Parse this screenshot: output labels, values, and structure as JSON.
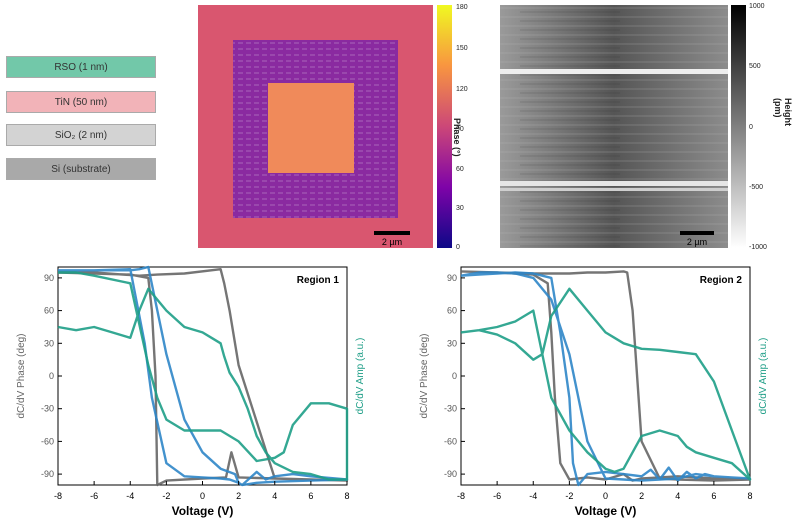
{
  "stack": {
    "layers": [
      {
        "label": "RSO (1 nm)",
        "color": "#72c8a9"
      },
      {
        "label": "TiN (50 nm)",
        "color": "#f2b3b8"
      },
      {
        "label": "SiO₂ (2 nm)",
        "color": "#d3d3d3"
      },
      {
        "label": "Si (substrate)",
        "color": "#a9a9a9"
      }
    ]
  },
  "phase_map": {
    "scale_bar": "2 µm",
    "colorbar_label": "Phase (°)",
    "colorbar_ticks": [
      "0",
      "30",
      "60",
      "90",
      "120",
      "150",
      "180"
    ]
  },
  "height_map": {
    "scale_bar": "2 µm",
    "colorbar_label": "Height (pm)",
    "colorbar_ticks": [
      "-1000",
      "-500",
      "0",
      "500",
      "1000"
    ]
  },
  "chart_data": [
    {
      "type": "line",
      "title": "Region 1",
      "xlabel": "Voltage (V)",
      "ylabel_left": "dC/dV Phase (deg)",
      "ylabel_right": "dC/dV Amp (a.u.)",
      "xlim": [
        -8,
        8
      ],
      "ylim": [
        -100,
        100
      ],
      "x_ticks": [
        -8,
        -6,
        -4,
        -2,
        0,
        2,
        4,
        6,
        8
      ],
      "y_ticks": [
        -90,
        -60,
        -30,
        0,
        30,
        60,
        90
      ],
      "series": [
        {
          "color": "#666666",
          "axis": "left",
          "x": [
            -8,
            -6,
            -4,
            -3,
            -2.8,
            -2.6,
            -2.5,
            -2,
            0,
            1.3,
            1.6,
            2,
            4,
            6,
            8,
            8,
            6,
            4,
            2,
            1.5,
            1.2,
            1,
            -1,
            -2.5,
            -3.5,
            -6,
            -8
          ],
          "y": [
            95,
            94,
            93,
            90,
            60,
            0,
            -100,
            -96,
            -94,
            -93,
            -70,
            -93,
            -94,
            -95,
            -96,
            -96,
            -95,
            -94,
            10,
            60,
            85,
            98,
            94,
            93,
            92,
            95,
            95
          ]
        },
        {
          "color": "#2f86c8",
          "axis": "left",
          "x": [
            -8,
            -6,
            -4,
            -3.5,
            -3,
            -2,
            -1.5,
            -1,
            0,
            1,
            1.8,
            2,
            2.2,
            3,
            3.5,
            4,
            5,
            6,
            8,
            8,
            6,
            4,
            3,
            2.2,
            2,
            1.5,
            1,
            0,
            -1,
            -2,
            -2.8,
            -3.2,
            -4,
            -6,
            -8
          ],
          "y": [
            97,
            97,
            97,
            98,
            100,
            20,
            -10,
            -40,
            -70,
            -85,
            -90,
            -98,
            -100,
            -88,
            -95,
            -92,
            -90,
            -92,
            -95,
            -95,
            -96,
            -97,
            -98,
            -100,
            -98,
            -95,
            -94,
            -93,
            -92,
            -80,
            -20,
            30,
            98,
            97,
            97
          ]
        },
        {
          "color": "#1e9e87",
          "axis": "right",
          "x": [
            -8,
            -7,
            -6,
            -5,
            -4,
            -3.5,
            -3,
            -2,
            -1,
            0,
            0.5,
            1,
            1.2,
            1.5,
            2,
            2.5,
            3,
            3.5,
            4,
            5,
            6,
            7,
            8,
            8,
            7,
            6,
            5,
            4.5,
            4,
            3,
            2,
            1,
            0.5,
            0,
            -1,
            -2,
            -2.5,
            -3,
            -4,
            -6,
            -7,
            -8
          ],
          "y": [
            45,
            42,
            45,
            40,
            35,
            60,
            80,
            60,
            45,
            40,
            35,
            30,
            18,
            3,
            -10,
            -30,
            -55,
            -70,
            -80,
            -88,
            -90,
            -95,
            -95,
            -30,
            -25,
            -25,
            -45,
            -70,
            -75,
            -78,
            -60,
            -50,
            -50,
            -50,
            -50,
            -40,
            -20,
            10,
            85,
            92,
            95,
            95
          ]
        }
      ]
    },
    {
      "type": "line",
      "title": "Region 2",
      "xlabel": "Voltage (V)",
      "ylabel_left": "dC/dV Phase (deg)",
      "ylabel_right": "dC/dV Amp (a.u.)",
      "xlim": [
        -8,
        8
      ],
      "ylim": [
        -100,
        100
      ],
      "x_ticks": [
        -8,
        -6,
        -4,
        -2,
        0,
        2,
        4,
        6,
        8
      ],
      "y_ticks": [
        -90,
        -60,
        -30,
        0,
        30,
        60,
        90
      ],
      "series": [
        {
          "color": "#666666",
          "axis": "left",
          "x": [
            -8,
            -6,
            -5,
            -4,
            -3.2,
            -3,
            -2.8,
            -2.5,
            -2,
            -1,
            0,
            1,
            1.5,
            2,
            3,
            4,
            6,
            8,
            8,
            6,
            4,
            3,
            2,
            1.5,
            1.2,
            1,
            0,
            -1,
            -2,
            -4,
            -6,
            -8
          ],
          "y": [
            96,
            95,
            94,
            93,
            85,
            40,
            -20,
            -80,
            -95,
            -93,
            -95,
            -90,
            -96,
            -94,
            -93,
            -92,
            -94,
            -95,
            -95,
            -96,
            -95,
            -94,
            -60,
            60,
            95,
            96,
            95,
            95,
            94,
            94,
            95,
            96
          ]
        },
        {
          "color": "#2f86c8",
          "axis": "left",
          "x": [
            -8,
            -7,
            -6,
            -5,
            -4,
            -3.5,
            -3,
            -2.5,
            -2,
            -1.8,
            -1.5,
            -1,
            0,
            1,
            2,
            2.5,
            3,
            3.5,
            4,
            4.5,
            5,
            5.5,
            6,
            7,
            8,
            8,
            7,
            6,
            5,
            4,
            3,
            2,
            1,
            0,
            -1,
            -2,
            -3,
            -4,
            -5,
            -6,
            -7,
            -8
          ],
          "y": [
            92,
            93,
            94,
            95,
            94,
            92,
            90,
            40,
            -20,
            -80,
            -100,
            -90,
            -88,
            -90,
            -92,
            -86,
            -95,
            -84,
            -96,
            -88,
            -94,
            -90,
            -92,
            -93,
            -94,
            -94,
            -93,
            -92,
            -90,
            -94,
            -95,
            -96,
            -95,
            -94,
            -60,
            20,
            70,
            90,
            94,
            95,
            95,
            92
          ]
        },
        {
          "color": "#1e9e87",
          "axis": "right",
          "x": [
            -8,
            -7,
            -6,
            -5,
            -4,
            -3.5,
            -3,
            -2,
            -1,
            0,
            0.5,
            1,
            2,
            3,
            4,
            5,
            6,
            7,
            8,
            8,
            7,
            6,
            5,
            4.5,
            4,
            3,
            2,
            1.5,
            1,
            0.5,
            0,
            -1,
            -2,
            -3,
            -4,
            -5,
            -6,
            -7,
            -8
          ],
          "y": [
            40,
            42,
            38,
            30,
            15,
            20,
            55,
            80,
            60,
            40,
            35,
            30,
            25,
            24,
            22,
            20,
            -5,
            -50,
            -95,
            -95,
            -80,
            -75,
            -70,
            -65,
            -55,
            -50,
            -55,
            -70,
            -85,
            -88,
            -85,
            -70,
            -50,
            -20,
            60,
            50,
            45,
            42,
            40
          ]
        }
      ]
    }
  ]
}
